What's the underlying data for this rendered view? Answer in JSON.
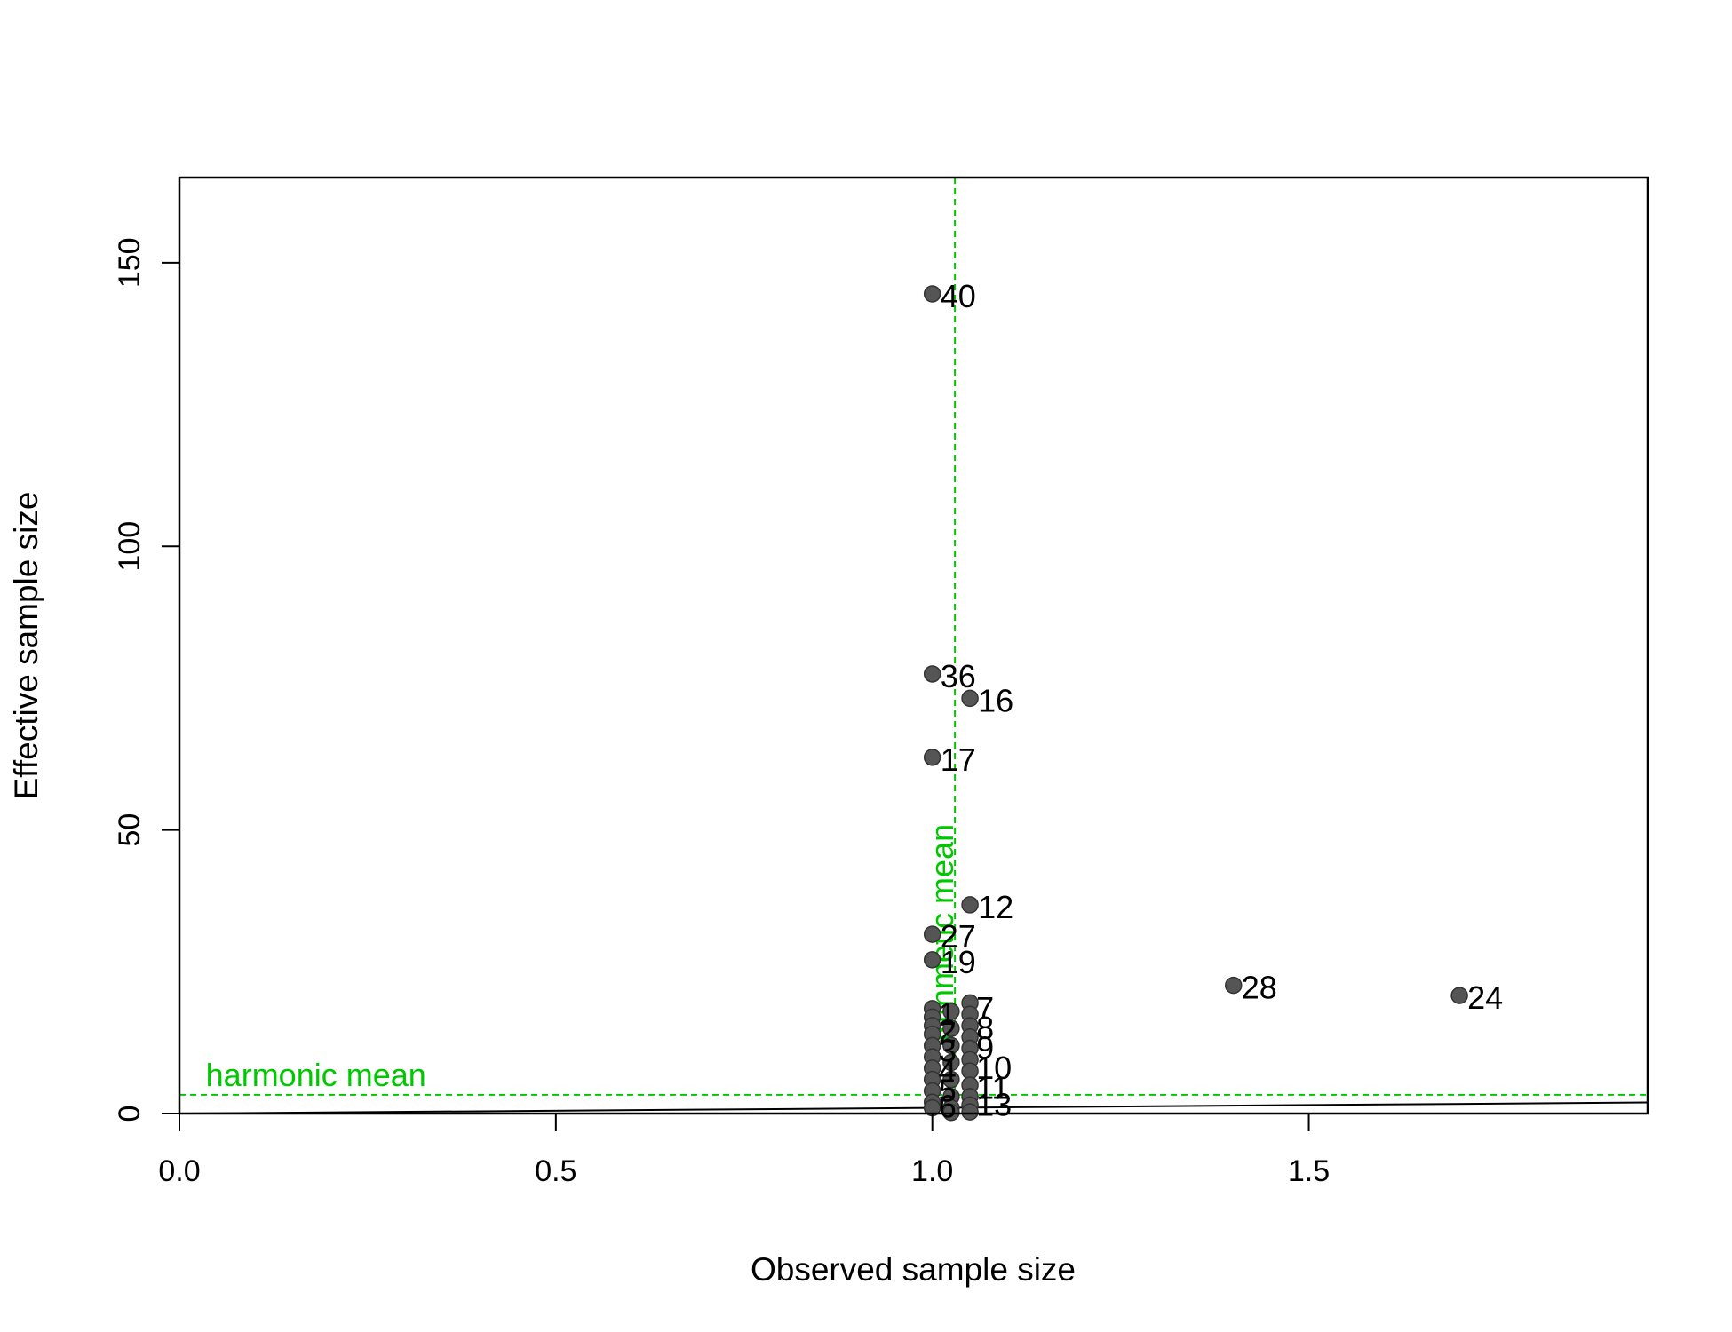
{
  "chart_data": {
    "type": "scatter",
    "xlabel": "Observed sample size",
    "ylabel": "Effective sample size",
    "xlim": [
      0,
      1.95
    ],
    "ylim": [
      0,
      165
    ],
    "x_ticks": [
      0.0,
      0.5,
      1.0,
      1.5
    ],
    "x_tick_labels": [
      "0.0",
      "0.5",
      "1.0",
      "1.5"
    ],
    "y_ticks": [
      0,
      50,
      100,
      150
    ],
    "y_tick_labels": [
      "0",
      "50",
      "100",
      "150"
    ],
    "grid": false,
    "point_color": "#555555",
    "reference_color": "#00c800",
    "labeled_points": [
      {
        "label": "40",
        "x": 1.0,
        "y": 144.5
      },
      {
        "label": "36",
        "x": 1.0,
        "y": 77.5
      },
      {
        "label": "16",
        "x": 1.05,
        "y": 73.2
      },
      {
        "label": "17",
        "x": 1.0,
        "y": 62.8
      },
      {
        "label": "12",
        "x": 1.05,
        "y": 36.8
      },
      {
        "label": "27",
        "x": 1.0,
        "y": 31.6
      },
      {
        "label": "19",
        "x": 1.0,
        "y": 27.1
      },
      {
        "label": "28",
        "x": 1.4,
        "y": 22.6
      },
      {
        "label": "24",
        "x": 1.7,
        "y": 20.8
      }
    ],
    "cluster_points": [
      {
        "x": 1.0,
        "y": 18.5
      },
      {
        "x": 1.0,
        "y": 17.0
      },
      {
        "x": 1.0,
        "y": 15.5
      },
      {
        "x": 1.0,
        "y": 14.0
      },
      {
        "x": 1.0,
        "y": 12.0
      },
      {
        "x": 1.0,
        "y": 10.0
      },
      {
        "x": 1.0,
        "y": 8.0
      },
      {
        "x": 1.0,
        "y": 6.0
      },
      {
        "x": 1.0,
        "y": 4.0
      },
      {
        "x": 1.0,
        "y": 2.0
      },
      {
        "x": 1.0,
        "y": 1.0
      },
      {
        "x": 1.025,
        "y": 18.0
      },
      {
        "x": 1.025,
        "y": 15.0
      },
      {
        "x": 1.025,
        "y": 12.0
      },
      {
        "x": 1.025,
        "y": 9.0
      },
      {
        "x": 1.025,
        "y": 6.0
      },
      {
        "x": 1.025,
        "y": 3.0
      },
      {
        "x": 1.025,
        "y": 1.0
      },
      {
        "x": 1.025,
        "y": 0.2
      },
      {
        "x": 1.05,
        "y": 19.5
      },
      {
        "x": 1.05,
        "y": 17.5
      },
      {
        "x": 1.05,
        "y": 15.5
      },
      {
        "x": 1.05,
        "y": 13.5
      },
      {
        "x": 1.05,
        "y": 11.5
      },
      {
        "x": 1.05,
        "y": 9.5
      },
      {
        "x": 1.05,
        "y": 7.5
      },
      {
        "x": 1.05,
        "y": 5.0
      },
      {
        "x": 1.05,
        "y": 3.0
      },
      {
        "x": 1.05,
        "y": 1.5
      },
      {
        "x": 1.05,
        "y": 0.3
      }
    ],
    "cluster_labels": [
      {
        "label": "1",
        "x": 1.0,
        "y": 17.5
      },
      {
        "label": "2",
        "x": 1.0,
        "y": 14.5
      },
      {
        "label": "3",
        "x": 1.0,
        "y": 11.0
      },
      {
        "label": "4",
        "x": 1.0,
        "y": 7.5
      },
      {
        "label": "5",
        "x": 1.0,
        "y": 4.0
      },
      {
        "label": "6",
        "x": 1.0,
        "y": 1.2
      },
      {
        "label": "7",
        "x": 1.05,
        "y": 18.5
      },
      {
        "label": "8",
        "x": 1.05,
        "y": 15.0
      },
      {
        "label": "9",
        "x": 1.05,
        "y": 11.5
      },
      {
        "label": "10",
        "x": 1.05,
        "y": 8.0
      },
      {
        "label": "11",
        "x": 1.05,
        "y": 4.5
      },
      {
        "label": "13",
        "x": 1.05,
        "y": 1.5
      }
    ],
    "reference_line": {
      "x": [
        0,
        1.95
      ],
      "y": [
        0,
        1.95
      ]
    },
    "harmonic_mean": {
      "label": "harmonic mean",
      "y": 3.3
    },
    "arithmetic_mean": {
      "label": "arithmetic mean",
      "x": 1.03
    }
  }
}
